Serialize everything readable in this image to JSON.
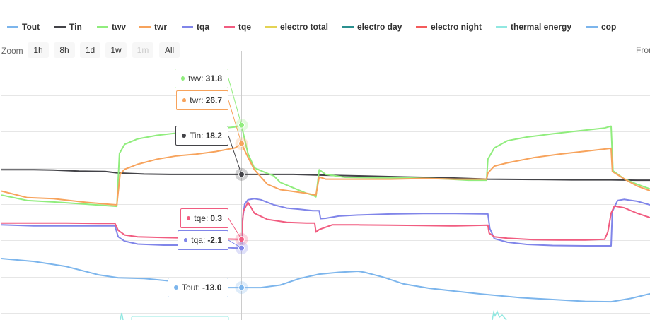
{
  "legend": [
    {
      "label": "Tout",
      "color": "#7cb5ec"
    },
    {
      "label": "Tin",
      "color": "#434348"
    },
    {
      "label": "twv",
      "color": "#90ed7d"
    },
    {
      "label": "twr",
      "color": "#f7a35c"
    },
    {
      "label": "tqa",
      "color": "#8085e9"
    },
    {
      "label": "tqe",
      "color": "#f15c80"
    },
    {
      "label": "electro total",
      "color": "#e4d354"
    },
    {
      "label": "electro day",
      "color": "#2b908f"
    },
    {
      "label": "electro night",
      "color": "#f45b5b"
    },
    {
      "label": "thermal energy",
      "color": "#91e8e1"
    },
    {
      "label": "cop",
      "color": "#7cb5ec"
    }
  ],
  "zoom": {
    "label": "Zoom",
    "buttons": [
      {
        "label": "1h",
        "enabled": true
      },
      {
        "label": "8h",
        "enabled": true
      },
      {
        "label": "1d",
        "enabled": true
      },
      {
        "label": "1w",
        "enabled": true
      },
      {
        "label": "1m",
        "enabled": false
      },
      {
        "label": "All",
        "enabled": true
      }
    ],
    "from_label": "From"
  },
  "chart_data": {
    "type": "line",
    "x_range": [
      0,
      100
    ],
    "y_range": [
      -20,
      40
    ],
    "hover_x": 37,
    "series": [
      {
        "name": "Tout",
        "color": "#7cb5ec",
        "points": [
          [
            0,
            -5
          ],
          [
            5,
            -5.8
          ],
          [
            10,
            -7.2
          ],
          [
            15,
            -9.5
          ],
          [
            18,
            -10.3
          ],
          [
            22,
            -10.5
          ],
          [
            26,
            -11.2
          ],
          [
            30,
            -12.4
          ],
          [
            34,
            -13
          ],
          [
            37,
            -13
          ],
          [
            40,
            -13
          ],
          [
            43,
            -12.3
          ],
          [
            46,
            -10.5
          ],
          [
            49,
            -9.3
          ],
          [
            52,
            -8.8
          ],
          [
            55,
            -8.5
          ],
          [
            56,
            -8.8
          ],
          [
            59,
            -10.2
          ],
          [
            62,
            -12
          ],
          [
            66,
            -13.2
          ],
          [
            70,
            -14
          ],
          [
            74,
            -14.8
          ],
          [
            80,
            -15.8
          ],
          [
            86,
            -16.4
          ],
          [
            90,
            -16.8
          ],
          [
            94,
            -16.9
          ],
          [
            97,
            -16
          ],
          [
            100,
            -14.7
          ]
        ]
      },
      {
        "name": "Tin",
        "color": "#434348",
        "points": [
          [
            0,
            19.5
          ],
          [
            5,
            19.5
          ],
          [
            8,
            19.4
          ],
          [
            12,
            19.1
          ],
          [
            16,
            19
          ],
          [
            18,
            18.6
          ],
          [
            22,
            18.3
          ],
          [
            26,
            18.2
          ],
          [
            30,
            18.2
          ],
          [
            34,
            18.2
          ],
          [
            37,
            18.2
          ],
          [
            40,
            18.2
          ],
          [
            45,
            18.2
          ],
          [
            49,
            18
          ],
          [
            55,
            17.8
          ],
          [
            62,
            17.5
          ],
          [
            68,
            17.3
          ],
          [
            75,
            16.9
          ],
          [
            82,
            16.8
          ],
          [
            88,
            16.7
          ],
          [
            94,
            16.7
          ],
          [
            98,
            16.6
          ],
          [
            100,
            16.6
          ]
        ]
      },
      {
        "name": "twv",
        "color": "#90ed7d",
        "points": [
          [
            0,
            12.5
          ],
          [
            4,
            11
          ],
          [
            8,
            10.6
          ],
          [
            13,
            10
          ],
          [
            17,
            9.5
          ],
          [
            17.8,
            9.4
          ],
          [
            18.2,
            24
          ],
          [
            19,
            26.5
          ],
          [
            21,
            28
          ],
          [
            24,
            29
          ],
          [
            27,
            29.6
          ],
          [
            30,
            30.2
          ],
          [
            33,
            30.8
          ],
          [
            36,
            31.3
          ],
          [
            37,
            31.8
          ],
          [
            38,
            24
          ],
          [
            39,
            20
          ],
          [
            41,
            18.5
          ],
          [
            42,
            17.8
          ],
          [
            43,
            16
          ],
          [
            45,
            14.5
          ],
          [
            47,
            13
          ],
          [
            48,
            12.5
          ],
          [
            48.5,
            12
          ],
          [
            49,
            19.5
          ],
          [
            50,
            18.2
          ],
          [
            53,
            17.4
          ],
          [
            58,
            17.3
          ],
          [
            63,
            17.2
          ],
          [
            68,
            17
          ],
          [
            72,
            16.6
          ],
          [
            74.8,
            16.6
          ],
          [
            75,
            22.4
          ],
          [
            76,
            25.5
          ],
          [
            78,
            27.5
          ],
          [
            81,
            28.5
          ],
          [
            85,
            29.4
          ],
          [
            89,
            30.2
          ],
          [
            93,
            31
          ],
          [
            94,
            31.5
          ],
          [
            94.3,
            19.2
          ],
          [
            96,
            17
          ],
          [
            98,
            15.5
          ],
          [
            100,
            14.2
          ]
        ]
      },
      {
        "name": "twr",
        "color": "#f7a35c",
        "points": [
          [
            0,
            13.6
          ],
          [
            4,
            11.8
          ],
          [
            8,
            11.5
          ],
          [
            13,
            10.5
          ],
          [
            17,
            9.9
          ],
          [
            17.8,
            9.8
          ],
          [
            18.3,
            18.3
          ],
          [
            19,
            19.6
          ],
          [
            21,
            21
          ],
          [
            24,
            22.4
          ],
          [
            27,
            23.3
          ],
          [
            30,
            23.8
          ],
          [
            33,
            24.5
          ],
          [
            36,
            25.5
          ],
          [
            37,
            26.7
          ],
          [
            38,
            23
          ],
          [
            39,
            19.5
          ],
          [
            41,
            15.5
          ],
          [
            43,
            14
          ],
          [
            47,
            13
          ],
          [
            48.5,
            12.5
          ],
          [
            49,
            17.5
          ],
          [
            50,
            16.9
          ],
          [
            54,
            16.9
          ],
          [
            60,
            16.9
          ],
          [
            65,
            17.1
          ],
          [
            70,
            16.9
          ],
          [
            74.8,
            16.9
          ],
          [
            75,
            18.6
          ],
          [
            76,
            20.5
          ],
          [
            78,
            21.4
          ],
          [
            82,
            22.8
          ],
          [
            86,
            23.8
          ],
          [
            90,
            24.6
          ],
          [
            93,
            25.2
          ],
          [
            94,
            25.4
          ],
          [
            94.2,
            19
          ],
          [
            96,
            17
          ],
          [
            98,
            15
          ],
          [
            100,
            13.7
          ]
        ]
      },
      {
        "name": "tqa",
        "color": "#8085e9",
        "points": [
          [
            0,
            4.3
          ],
          [
            5,
            4
          ],
          [
            10,
            4
          ],
          [
            15,
            4
          ],
          [
            17.5,
            4
          ],
          [
            18,
            1
          ],
          [
            19,
            -0.2
          ],
          [
            21,
            -1
          ],
          [
            25,
            -1.3
          ],
          [
            28,
            -1.3
          ],
          [
            31,
            -1.5
          ],
          [
            34,
            -1.9
          ],
          [
            36,
            -2.1
          ],
          [
            37,
            -2.1
          ],
          [
            37.2,
            6
          ],
          [
            37.5,
            10
          ],
          [
            38,
            11.2
          ],
          [
            39,
            11.5
          ],
          [
            40,
            11.2
          ],
          [
            42,
            9.8
          ],
          [
            44,
            8.9
          ],
          [
            46,
            8.6
          ],
          [
            48,
            8.2
          ],
          [
            49,
            8.2
          ],
          [
            49.2,
            6
          ],
          [
            50,
            6.1
          ],
          [
            52,
            6.7
          ],
          [
            55,
            7
          ],
          [
            60,
            7.3
          ],
          [
            65,
            7.4
          ],
          [
            70,
            7.4
          ],
          [
            75,
            7.3
          ],
          [
            75.3,
            3.3
          ],
          [
            76,
            0.5
          ],
          [
            78,
            -0.5
          ],
          [
            81,
            -1.1
          ],
          [
            85,
            -1.4
          ],
          [
            90,
            -1.5
          ],
          [
            94,
            -1.5
          ],
          [
            94.2,
            8
          ],
          [
            95,
            11
          ],
          [
            96,
            11.3
          ],
          [
            98,
            10.8
          ],
          [
            100,
            9.8
          ]
        ]
      },
      {
        "name": "tqe",
        "color": "#f15c80",
        "points": [
          [
            0,
            4.8
          ],
          [
            5,
            4.8
          ],
          [
            10,
            4.8
          ],
          [
            15,
            4.7
          ],
          [
            17.5,
            4.7
          ],
          [
            18,
            2.8
          ],
          [
            19,
            1.5
          ],
          [
            21,
            1
          ],
          [
            25,
            0.8
          ],
          [
            30,
            0.6
          ],
          [
            34,
            0.4
          ],
          [
            36.5,
            0.3
          ],
          [
            37,
            0.3
          ],
          [
            37.3,
            8
          ],
          [
            38,
            10.5
          ],
          [
            39,
            7.5
          ],
          [
            41,
            5.8
          ],
          [
            44,
            5
          ],
          [
            47,
            4.8
          ],
          [
            48.3,
            4.8
          ],
          [
            48.5,
            2.3
          ],
          [
            49,
            3
          ],
          [
            51,
            4.3
          ],
          [
            55,
            4.3
          ],
          [
            60,
            4.2
          ],
          [
            65,
            4.1
          ],
          [
            70,
            4
          ],
          [
            75,
            4.2
          ],
          [
            75.2,
            2
          ],
          [
            76,
            1
          ],
          [
            78,
            0.6
          ],
          [
            82,
            0.2
          ],
          [
            86,
            0.1
          ],
          [
            90,
            0.1
          ],
          [
            93,
            0.3
          ],
          [
            93.5,
            2.3
          ],
          [
            94,
            7.5
          ],
          [
            94.5,
            9.5
          ],
          [
            96,
            9
          ],
          [
            98,
            7.5
          ],
          [
            100,
            6.3
          ]
        ]
      }
    ],
    "tooltips": [
      {
        "series": "twv",
        "label": "twv:",
        "value": "31.8"
      },
      {
        "series": "twr",
        "label": "twr:",
        "value": "26.7"
      },
      {
        "series": "Tin",
        "label": "Tin:",
        "value": "18.2"
      },
      {
        "series": "tqe",
        "label": "tqe:",
        "value": "0.3"
      },
      {
        "series": "tqa",
        "label": "tqa:",
        "value": "-2.1"
      },
      {
        "series": "Tout",
        "label": "Tout:",
        "value": "-13.0"
      }
    ]
  }
}
